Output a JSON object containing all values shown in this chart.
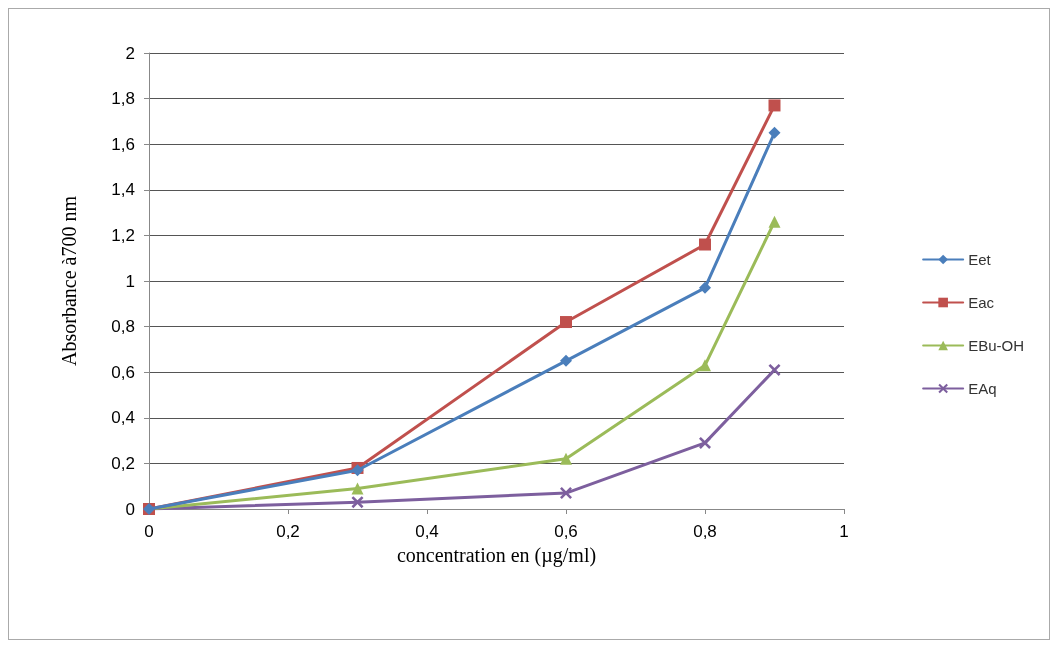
{
  "chart_data": {
    "type": "line",
    "xlabel": "concentration en (µg/ml)",
    "ylabel": "Absorbance à700 nm",
    "x": [
      0,
      0.3,
      0.6,
      0.8,
      0.9
    ],
    "series": [
      {
        "name": "Eet",
        "color": "#4a7ebb",
        "marker": "diamond",
        "values": [
          0,
          0.17,
          0.65,
          0.97,
          1.65
        ]
      },
      {
        "name": "Eac",
        "color": "#c0504d",
        "marker": "square",
        "values": [
          0,
          0.18,
          0.82,
          1.16,
          1.77
        ]
      },
      {
        "name": "EBu-OH",
        "color": "#9bbb59",
        "marker": "triangle",
        "values": [
          0,
          0.09,
          0.22,
          0.63,
          1.26
        ]
      },
      {
        "name": "EAq",
        "color": "#7d5f9e",
        "marker": "cross",
        "values": [
          0,
          0.03,
          0.07,
          0.29,
          0.61
        ]
      }
    ],
    "xlim": [
      0,
      1
    ],
    "xticks": [
      0,
      {
        "value": 0.2,
        "label": "0,2"
      },
      {
        "value": 0.4,
        "label": "0,4"
      },
      {
        "value": 0.6,
        "label": "0,6"
      },
      {
        "value": 0.8,
        "label": "0,8"
      },
      1
    ],
    "ylim": [
      0,
      2
    ],
    "yticks": [
      0,
      {
        "value": 0.2,
        "label": "0,2"
      },
      {
        "value": 0.4,
        "label": "0,4"
      },
      {
        "value": 0.6,
        "label": "0,6"
      },
      {
        "value": 0.8,
        "label": "0,8"
      },
      1,
      {
        "value": 1.2,
        "label": "1,2"
      },
      {
        "value": 1.4,
        "label": "1,4"
      },
      {
        "value": 1.6,
        "label": "1,6"
      },
      {
        "value": 1.8,
        "label": "1,8"
      },
      2
    ],
    "grid": "y",
    "legend": "right",
    "line_style": "solid"
  }
}
